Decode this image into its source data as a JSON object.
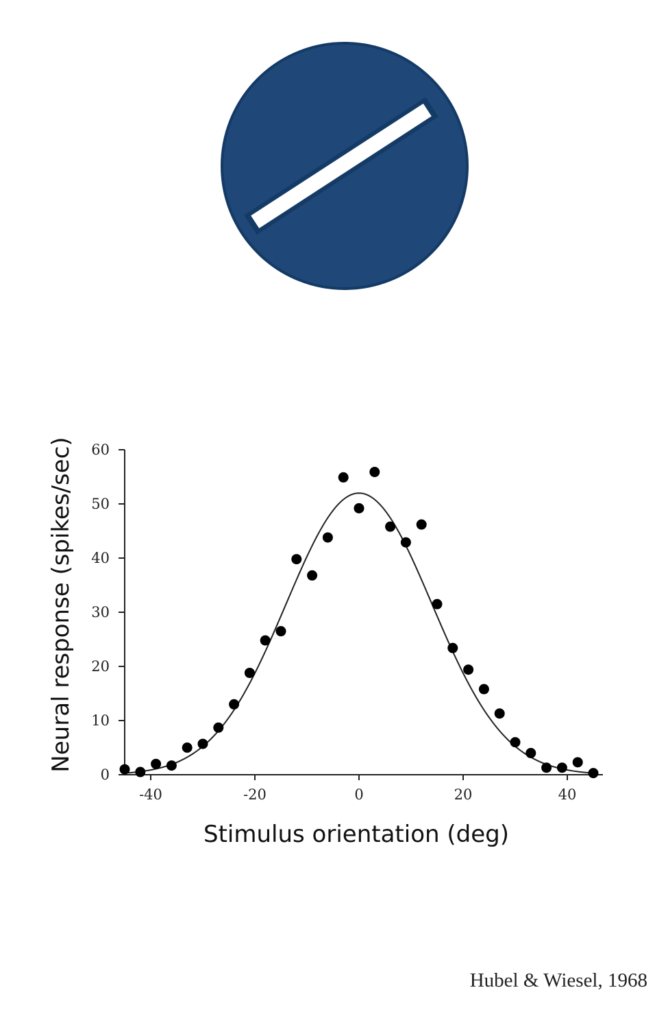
{
  "stimulus": {
    "fill_color": "#1f4777",
    "border_color": "#143a66",
    "bar_color": "#ffffff",
    "bar_orientation_deg": 33
  },
  "chart_data": {
    "type": "scatter",
    "xlabel": "Stimulus orientation (deg)",
    "ylabel": "Neural response (spikes/sec)",
    "xlim": [
      -45,
      45
    ],
    "ylim": [
      0,
      60
    ],
    "xticks": [
      -40,
      -20,
      0,
      20,
      40
    ],
    "yticks": [
      0,
      10,
      20,
      30,
      40,
      50,
      60
    ],
    "grid": false,
    "points": [
      {
        "x": -45,
        "y": 1
      },
      {
        "x": -42,
        "y": 0.5
      },
      {
        "x": -39,
        "y": 2
      },
      {
        "x": -36,
        "y": 1.7
      },
      {
        "x": -33,
        "y": 5
      },
      {
        "x": -30,
        "y": 5.7
      },
      {
        "x": -27,
        "y": 8.7
      },
      {
        "x": -24,
        "y": 13
      },
      {
        "x": -21,
        "y": 18.8
      },
      {
        "x": -18,
        "y": 24.8
      },
      {
        "x": -15,
        "y": 26.5
      },
      {
        "x": -12,
        "y": 39.8
      },
      {
        "x": -9,
        "y": 36.8
      },
      {
        "x": -6,
        "y": 43.8
      },
      {
        "x": -3,
        "y": 54.9
      },
      {
        "x": 0,
        "y": 49.2
      },
      {
        "x": 3,
        "y": 55.9
      },
      {
        "x": 6,
        "y": 45.8
      },
      {
        "x": 9,
        "y": 42.9
      },
      {
        "x": 12,
        "y": 46.2
      },
      {
        "x": 15,
        "y": 31.5
      },
      {
        "x": 18,
        "y": 23.4
      },
      {
        "x": 21,
        "y": 19.4
      },
      {
        "x": 24,
        "y": 15.8
      },
      {
        "x": 27,
        "y": 11.3
      },
      {
        "x": 30,
        "y": 6
      },
      {
        "x": 33,
        "y": 4
      },
      {
        "x": 36,
        "y": 1.3
      },
      {
        "x": 39,
        "y": 1.3
      },
      {
        "x": 42,
        "y": 2.3
      },
      {
        "x": 45,
        "y": 0.3
      }
    ],
    "fit": {
      "type": "gaussian",
      "amplitude": 52,
      "mean": 0,
      "sigma": 14
    }
  },
  "citation": "Hubel & Wiesel, 1968"
}
